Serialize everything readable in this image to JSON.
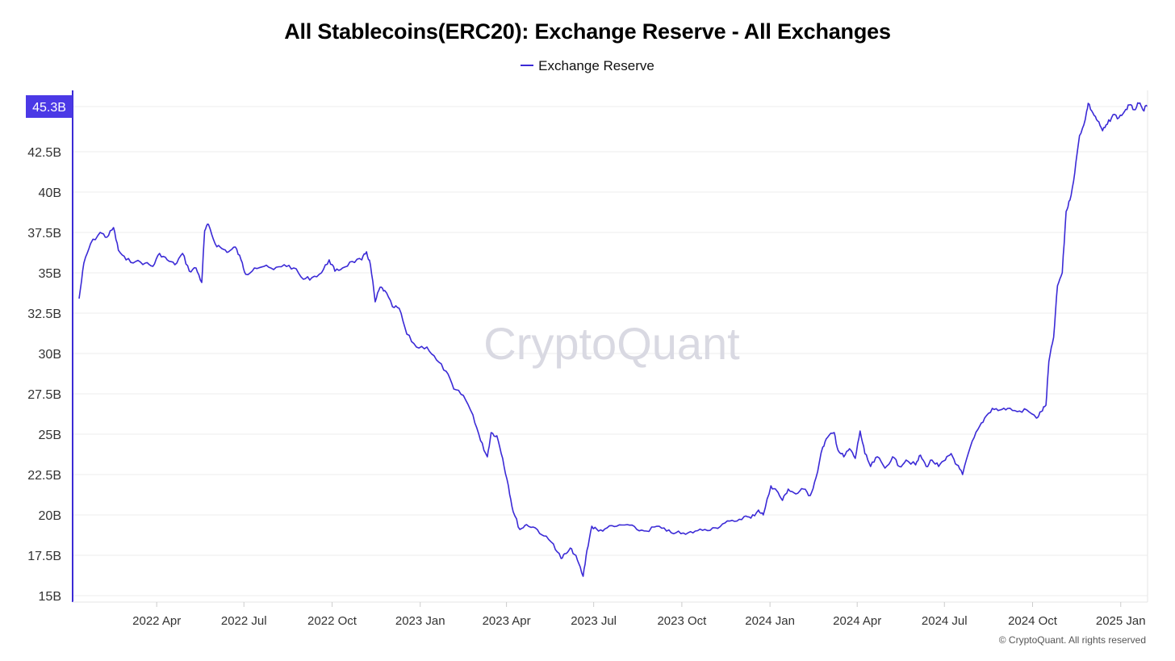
{
  "title": "All Stablecoins(ERC20): Exchange Reserve - All Exchanges",
  "legend": {
    "label": "Exchange Reserve"
  },
  "watermark": "CryptoQuant",
  "copyright": "© CryptoQuant. All rights reserved",
  "colors": {
    "line": "#3b2ad6",
    "badge": "#4b39e6",
    "axis": "#3b2ad6",
    "grid": "#eeeeee",
    "watermark": "#d9d9e2",
    "tick_text": "#333333"
  },
  "chart_data": {
    "type": "line",
    "title": "All Stablecoins(ERC20): Exchange Reserve - All Exchanges",
    "series_name": "Exchange Reserve",
    "unit": "B",
    "ylim": [
      15,
      46.3
    ],
    "xlim": [
      "2022-01-10",
      "2025-01-29"
    ],
    "y_ticks": [
      {
        "value": 15,
        "label": "15B"
      },
      {
        "value": 17.5,
        "label": "17.5B"
      },
      {
        "value": 20,
        "label": "20B"
      },
      {
        "value": 22.5,
        "label": "22.5B"
      },
      {
        "value": 25,
        "label": "25B"
      },
      {
        "value": 27.5,
        "label": "27.5B"
      },
      {
        "value": 30,
        "label": "30B"
      },
      {
        "value": 32.5,
        "label": "32.5B"
      },
      {
        "value": 35,
        "label": "35B"
      },
      {
        "value": 37.5,
        "label": "37.5B"
      },
      {
        "value": 40,
        "label": "40B"
      },
      {
        "value": 42.5,
        "label": "42.5B"
      }
    ],
    "x_ticks": [
      {
        "date": "2022-04-01",
        "label": "2022 Apr"
      },
      {
        "date": "2022-07-01",
        "label": "2022 Jul"
      },
      {
        "date": "2022-10-01",
        "label": "2022 Oct"
      },
      {
        "date": "2023-01-01",
        "label": "2023 Jan"
      },
      {
        "date": "2023-04-01",
        "label": "2023 Apr"
      },
      {
        "date": "2023-07-01",
        "label": "2023 Jul"
      },
      {
        "date": "2023-10-01",
        "label": "2023 Oct"
      },
      {
        "date": "2024-01-01",
        "label": "2024 Jan"
      },
      {
        "date": "2024-04-01",
        "label": "2024 Apr"
      },
      {
        "date": "2024-07-01",
        "label": "2024 Jul"
      },
      {
        "date": "2024-10-01",
        "label": "2024 Oct"
      },
      {
        "date": "2025-01-01",
        "label": "2025 Jan"
      }
    ],
    "last_value_label": "45.3B",
    "last_value": 45.3,
    "points": [
      [
        "2022-01-10",
        33.4
      ],
      [
        "2022-01-15",
        35.6
      ],
      [
        "2022-01-22",
        36.8
      ],
      [
        "2022-02-01",
        37.5
      ],
      [
        "2022-02-08",
        37.2
      ],
      [
        "2022-02-15",
        37.8
      ],
      [
        "2022-02-20",
        36.4
      ],
      [
        "2022-02-28",
        35.8
      ],
      [
        "2022-03-10",
        35.7
      ],
      [
        "2022-03-20",
        35.6
      ],
      [
        "2022-03-28",
        35.4
      ],
      [
        "2022-04-04",
        36.2
      ],
      [
        "2022-04-12",
        35.8
      ],
      [
        "2022-04-20",
        35.5
      ],
      [
        "2022-04-28",
        36.2
      ],
      [
        "2022-05-05",
        35.1
      ],
      [
        "2022-05-12",
        35.3
      ],
      [
        "2022-05-18",
        34.4
      ],
      [
        "2022-05-21",
        37.6
      ],
      [
        "2022-05-25",
        38.0
      ],
      [
        "2022-06-01",
        36.8
      ],
      [
        "2022-06-08",
        36.5
      ],
      [
        "2022-06-15",
        36.3
      ],
      [
        "2022-06-22",
        36.6
      ],
      [
        "2022-06-28",
        35.8
      ],
      [
        "2022-07-03",
        34.9
      ],
      [
        "2022-07-12",
        35.3
      ],
      [
        "2022-07-22",
        35.4
      ],
      [
        "2022-08-01",
        35.2
      ],
      [
        "2022-08-12",
        35.5
      ],
      [
        "2022-08-22",
        35.3
      ],
      [
        "2022-09-01",
        34.6
      ],
      [
        "2022-09-10",
        34.7
      ],
      [
        "2022-09-20",
        35.0
      ],
      [
        "2022-09-28",
        35.8
      ],
      [
        "2022-10-04",
        35.1
      ],
      [
        "2022-10-12",
        35.3
      ],
      [
        "2022-10-22",
        35.7
      ],
      [
        "2022-11-01",
        35.8
      ],
      [
        "2022-11-06",
        36.3
      ],
      [
        "2022-11-10",
        35.5
      ],
      [
        "2022-11-15",
        33.2
      ],
      [
        "2022-11-20",
        34.1
      ],
      [
        "2022-11-25",
        33.9
      ],
      [
        "2022-12-03",
        32.9
      ],
      [
        "2022-12-10",
        32.8
      ],
      [
        "2022-12-18",
        31.2
      ],
      [
        "2022-12-28",
        30.4
      ],
      [
        "2023-01-08",
        30.4
      ],
      [
        "2023-01-18",
        29.6
      ],
      [
        "2023-01-28",
        28.9
      ],
      [
        "2023-02-05",
        27.8
      ],
      [
        "2023-02-15",
        27.4
      ],
      [
        "2023-02-25",
        26.2
      ],
      [
        "2023-03-05",
        24.6
      ],
      [
        "2023-03-12",
        23.6
      ],
      [
        "2023-03-16",
        25.1
      ],
      [
        "2023-03-22",
        24.9
      ],
      [
        "2023-03-28",
        23.5
      ],
      [
        "2023-04-03",
        21.8
      ],
      [
        "2023-04-08",
        20.2
      ],
      [
        "2023-04-15",
        19.1
      ],
      [
        "2023-04-22",
        19.4
      ],
      [
        "2023-05-01",
        19.2
      ],
      [
        "2023-05-10",
        18.7
      ],
      [
        "2023-05-20",
        18.2
      ],
      [
        "2023-05-28",
        17.3
      ],
      [
        "2023-06-02",
        17.6
      ],
      [
        "2023-06-08",
        17.9
      ],
      [
        "2023-06-14",
        17.2
      ],
      [
        "2023-06-20",
        16.2
      ],
      [
        "2023-06-24",
        17.8
      ],
      [
        "2023-06-29",
        19.3
      ],
      [
        "2023-07-06",
        19.0
      ],
      [
        "2023-07-15",
        19.2
      ],
      [
        "2023-07-25",
        19.3
      ],
      [
        "2023-08-05",
        19.4
      ],
      [
        "2023-08-15",
        19.1
      ],
      [
        "2023-08-25",
        19.0
      ],
      [
        "2023-09-05",
        19.3
      ],
      [
        "2023-09-15",
        19.0
      ],
      [
        "2023-09-25",
        18.9
      ],
      [
        "2023-10-05",
        18.8
      ],
      [
        "2023-10-15",
        19.0
      ],
      [
        "2023-10-25",
        19.1
      ],
      [
        "2023-11-05",
        19.2
      ],
      [
        "2023-11-15",
        19.5
      ],
      [
        "2023-11-25",
        19.6
      ],
      [
        "2023-12-05",
        19.9
      ],
      [
        "2023-12-12",
        19.8
      ],
      [
        "2023-12-20",
        20.3
      ],
      [
        "2023-12-25",
        20.0
      ],
      [
        "2024-01-02",
        21.8
      ],
      [
        "2024-01-08",
        21.5
      ],
      [
        "2024-01-14",
        20.9
      ],
      [
        "2024-01-20",
        21.6
      ],
      [
        "2024-01-28",
        21.3
      ],
      [
        "2024-02-05",
        21.6
      ],
      [
        "2024-02-12",
        21.2
      ],
      [
        "2024-02-18",
        22.3
      ],
      [
        "2024-02-25",
        24.2
      ],
      [
        "2024-03-01",
        24.8
      ],
      [
        "2024-03-08",
        25.1
      ],
      [
        "2024-03-12",
        24.0
      ],
      [
        "2024-03-18",
        23.6
      ],
      [
        "2024-03-24",
        24.1
      ],
      [
        "2024-03-30",
        23.5
      ],
      [
        "2024-04-04",
        25.2
      ],
      [
        "2024-04-09",
        23.8
      ],
      [
        "2024-04-15",
        23.0
      ],
      [
        "2024-04-22",
        23.6
      ],
      [
        "2024-04-30",
        22.9
      ],
      [
        "2024-05-08",
        23.6
      ],
      [
        "2024-05-15",
        23.0
      ],
      [
        "2024-05-22",
        23.4
      ],
      [
        "2024-06-01",
        23.1
      ],
      [
        "2024-06-06",
        23.7
      ],
      [
        "2024-06-12",
        23.0
      ],
      [
        "2024-06-18",
        23.4
      ],
      [
        "2024-06-25",
        23.0
      ],
      [
        "2024-07-02",
        23.4
      ],
      [
        "2024-07-08",
        23.8
      ],
      [
        "2024-07-14",
        23.1
      ],
      [
        "2024-07-20",
        22.5
      ],
      [
        "2024-07-28",
        24.2
      ],
      [
        "2024-08-05",
        25.3
      ],
      [
        "2024-08-12",
        26.0
      ],
      [
        "2024-08-20",
        26.6
      ],
      [
        "2024-08-28",
        26.5
      ],
      [
        "2024-09-05",
        26.6
      ],
      [
        "2024-09-15",
        26.4
      ],
      [
        "2024-09-25",
        26.5
      ],
      [
        "2024-10-05",
        26.0
      ],
      [
        "2024-10-10",
        26.4
      ],
      [
        "2024-10-15",
        26.8
      ],
      [
        "2024-10-18",
        29.5
      ],
      [
        "2024-10-23",
        31.0
      ],
      [
        "2024-10-27",
        34.2
      ],
      [
        "2024-11-01",
        35.0
      ],
      [
        "2024-11-05",
        38.8
      ],
      [
        "2024-11-09",
        39.5
      ],
      [
        "2024-11-14",
        41.2
      ],
      [
        "2024-11-19",
        43.5
      ],
      [
        "2024-11-25",
        44.5
      ],
      [
        "2024-11-28",
        45.5
      ],
      [
        "2024-12-03",
        44.9
      ],
      [
        "2024-12-08",
        44.4
      ],
      [
        "2024-12-13",
        43.8
      ],
      [
        "2024-12-18",
        44.2
      ],
      [
        "2024-12-24",
        44.8
      ],
      [
        "2024-12-30",
        44.6
      ],
      [
        "2025-01-05",
        45.0
      ],
      [
        "2025-01-10",
        45.4
      ],
      [
        "2025-01-15",
        45.1
      ],
      [
        "2025-01-20",
        45.5
      ],
      [
        "2025-01-24",
        45.1
      ],
      [
        "2025-01-29",
        45.3
      ]
    ]
  }
}
